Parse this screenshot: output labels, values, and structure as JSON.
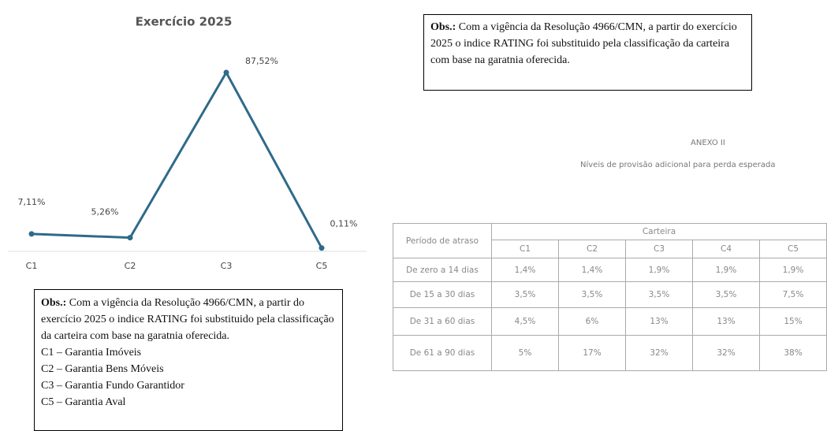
{
  "chart_data": {
    "type": "line",
    "title": "Exercício 2025",
    "categories": [
      "C1",
      "C2",
      "C3",
      "C5"
    ],
    "values": [
      7.11,
      5.26,
      87.52,
      0.11
    ],
    "value_labels": [
      "7,11%",
      "5,26%",
      "87,52%",
      "0,11%"
    ],
    "color": "#2f6a8a"
  },
  "note_top": {
    "label": "Obs.:",
    "text": "Com a vigência da Resolução 4966/CMN, a partir do exercício 2025 o indice RATING foi substituido pela classificação da carteira com base na garatnia oferecida."
  },
  "note_bottom": {
    "label": "Obs.:",
    "text": "Com a vigência da Resolução 4966/CMN, a partir do exercício 2025 o indice RATING foi substituido pela classificação da carteira com base na garatnia oferecida.",
    "items": [
      "C1 – Garantia Imóveis",
      "C2 – Garantia Bens Móveis",
      "C3 – Garantia Fundo Garantidor",
      "C5 – Garantia Aval"
    ]
  },
  "annex": {
    "title": "ANEXO II",
    "subtitle": "Níveis de provisão adicional para perda esperada",
    "table": {
      "row_header": "Período de atraso",
      "group_header": "Carteira",
      "columns": [
        "C1",
        "C2",
        "C3",
        "C4",
        "C5"
      ],
      "rows": [
        {
          "label": "De zero a 14 dias",
          "cells": [
            "1,4%",
            "1,4%",
            "1,9%",
            "1,9%",
            "1,9%"
          ]
        },
        {
          "label": "De 15 a 30 dias",
          "cells": [
            "3,5%",
            "3,5%",
            "3,5%",
            "3,5%",
            "7,5%"
          ]
        },
        {
          "label": "De 31 a 60 dias",
          "cells": [
            "4,5%",
            "6%",
            "13%",
            "13%",
            "15%"
          ]
        },
        {
          "label": "De 61 a 90 dias",
          "cells": [
            "5%",
            "17%",
            "32%",
            "32%",
            "38%"
          ]
        }
      ]
    }
  }
}
